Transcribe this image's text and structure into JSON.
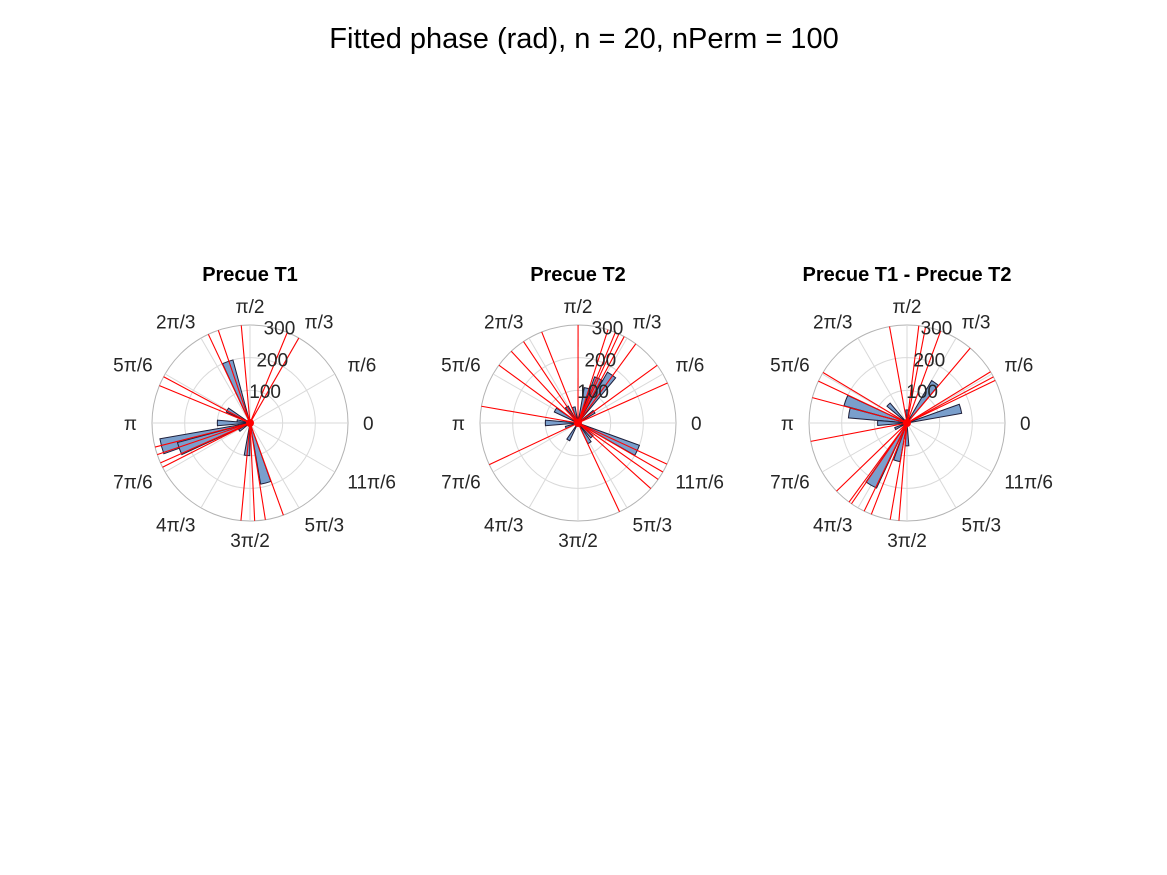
{
  "figure": {
    "title": "Fitted phase (rad), n = 20, nPerm = 100"
  },
  "colors": {
    "bar_fill": "#7a9fcc",
    "bar_edge": "#1f1f3a",
    "perm_line": "#ff0000",
    "grid": "#d9d9d9",
    "axis_outline": "#b3b3b3"
  },
  "axes": {
    "theta_tick_labels": [
      "0",
      "π/6",
      "π/3",
      "π/2",
      "2π/3",
      "5π/6",
      "π",
      "7π/6",
      "4π/3",
      "3π/2",
      "5π/3",
      "11π/6"
    ],
    "theta_tick_values_rad": [
      0,
      0.5236,
      1.0472,
      1.5708,
      2.0944,
      2.618,
      3.1416,
      3.6652,
      4.1888,
      4.7124,
      5.236,
      5.7596
    ],
    "r_tick_labels": [
      "100",
      "200",
      "300"
    ],
    "r_tick_values": [
      100,
      200,
      300
    ],
    "r_lim": [
      0,
      300
    ],
    "grid": true
  },
  "chart_data": [
    {
      "type": "polar-histogram",
      "title": "Precue T1",
      "bars": [
        {
          "theta": 1.92,
          "r": 200
        },
        {
          "theta": 2.62,
          "r": 80
        },
        {
          "theta": 2.97,
          "r": 40
        },
        {
          "theta": 3.14,
          "r": 100
        },
        {
          "theta": 3.4,
          "r": 280
        },
        {
          "theta": 3.49,
          "r": 230
        },
        {
          "theta": 3.75,
          "r": 40
        },
        {
          "theta": 4.62,
          "r": 100
        },
        {
          "theta": 4.97,
          "r": 190
        }
      ],
      "perm_lines_theta": [
        1.05,
        1.18,
        1.66,
        1.9,
        2.01,
        2.65,
        2.75,
        3.39,
        3.47,
        3.56,
        3.61,
        4.62,
        4.76,
        4.87,
        5.06
      ]
    },
    {
      "type": "polar-histogram",
      "title": "Precue T2",
      "bars": [
        {
          "theta": 0.61,
          "r": 60
        },
        {
          "theta": 0.96,
          "r": 180
        },
        {
          "theta": 1.14,
          "r": 150
        },
        {
          "theta": 1.31,
          "r": 110
        },
        {
          "theta": 1.83,
          "r": 50
        },
        {
          "theta": 2.18,
          "r": 60
        },
        {
          "theta": 2.62,
          "r": 80
        },
        {
          "theta": 3.14,
          "r": 100
        },
        {
          "theta": 3.49,
          "r": 40
        },
        {
          "theta": 4.19,
          "r": 60
        },
        {
          "theta": 5.24,
          "r": 70
        },
        {
          "theta": 5.5,
          "r": 60
        },
        {
          "theta": 5.85,
          "r": 200
        }
      ],
      "perm_lines_theta": [
        0.42,
        0.63,
        0.94,
        1.08,
        1.14,
        1.18,
        1.26,
        1.57,
        1.95,
        2.16,
        2.32,
        2.51,
        2.97,
        3.58,
        5.15,
        5.55,
        5.67,
        5.76,
        5.85
      ]
    },
    {
      "type": "polar-histogram",
      "title": "Precue T1 - Precue T2",
      "bars": [
        {
          "theta": 0.26,
          "r": 170
        },
        {
          "theta": 0.96,
          "r": 150
        },
        {
          "theta": 1.57,
          "r": 40
        },
        {
          "theta": 2.36,
          "r": 80
        },
        {
          "theta": 2.79,
          "r": 200
        },
        {
          "theta": 2.97,
          "r": 180
        },
        {
          "theta": 3.14,
          "r": 90
        },
        {
          "theta": 3.58,
          "r": 40
        },
        {
          "theta": 4.19,
          "r": 220
        },
        {
          "theta": 4.45,
          "r": 120
        },
        {
          "theta": 4.71,
          "r": 70
        }
      ],
      "perm_lines_theta": [
        0.45,
        0.49,
        0.55,
        0.87,
        1.22,
        1.38,
        1.45,
        1.75,
        2.6,
        2.7,
        2.88,
        3.33,
        3.91,
        4.08,
        4.11,
        4.26,
        4.34,
        4.54,
        4.63
      ]
    }
  ]
}
